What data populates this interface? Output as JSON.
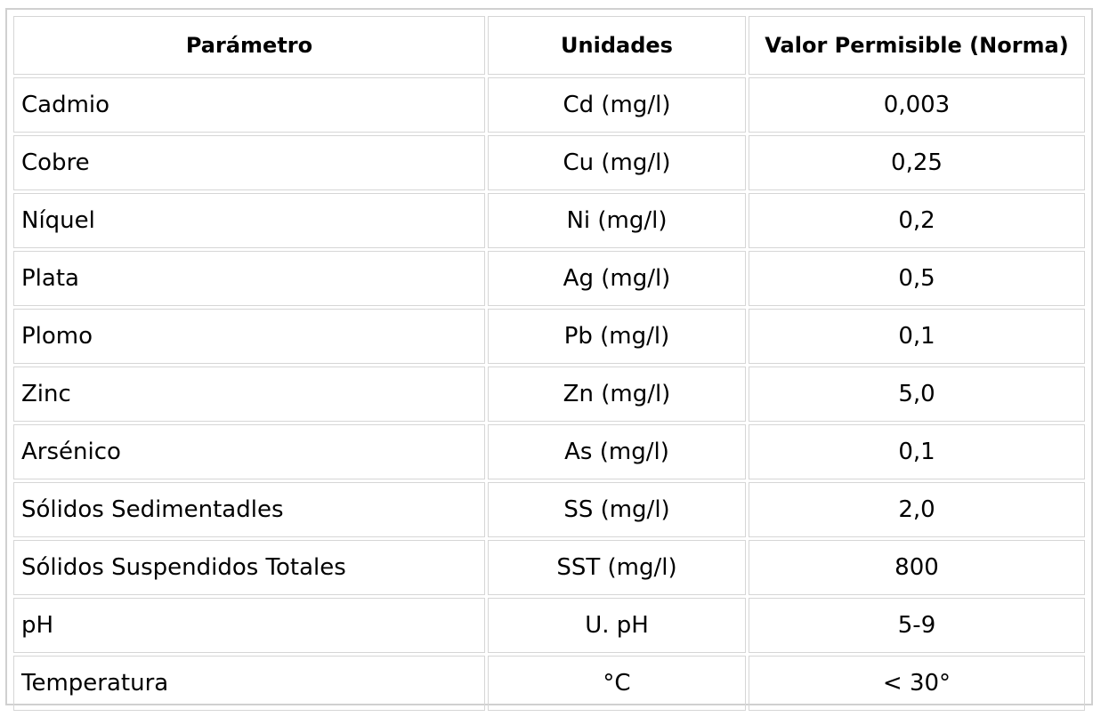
{
  "table": {
    "headers": [
      "Parámetro",
      "Unidades",
      "Valor Permisible (Norma)"
    ],
    "rows": [
      {
        "parametro": "Cadmio",
        "unidades": "Cd (mg/l)",
        "valor": "0,003"
      },
      {
        "parametro": "Cobre",
        "unidades": "Cu (mg/l)",
        "valor": "0,25"
      },
      {
        "parametro": "Níquel",
        "unidades": "Ni (mg/l)",
        "valor": "0,2"
      },
      {
        "parametro": "Plata",
        "unidades": "Ag (mg/l)",
        "valor": "0,5"
      },
      {
        "parametro": "Plomo",
        "unidades": "Pb (mg/l)",
        "valor": "0,1"
      },
      {
        "parametro": "Zinc",
        "unidades": "Zn (mg/l)",
        "valor": "5,0"
      },
      {
        "parametro": "Arsénico",
        "unidades": "As (mg/l)",
        "valor": "0,1"
      },
      {
        "parametro": "Sólidos Sedimentadles",
        "unidades": "SS (mg/l)",
        "valor": "2,0"
      },
      {
        "parametro": "Sólidos Suspendidos Totales",
        "unidades": "SST (mg/l)",
        "valor": "800"
      },
      {
        "parametro": "pH",
        "unidades": "U. pH",
        "valor": "5-9"
      },
      {
        "parametro": "Temperatura",
        "unidades": "°C",
        "valor": "< 30°"
      }
    ]
  }
}
